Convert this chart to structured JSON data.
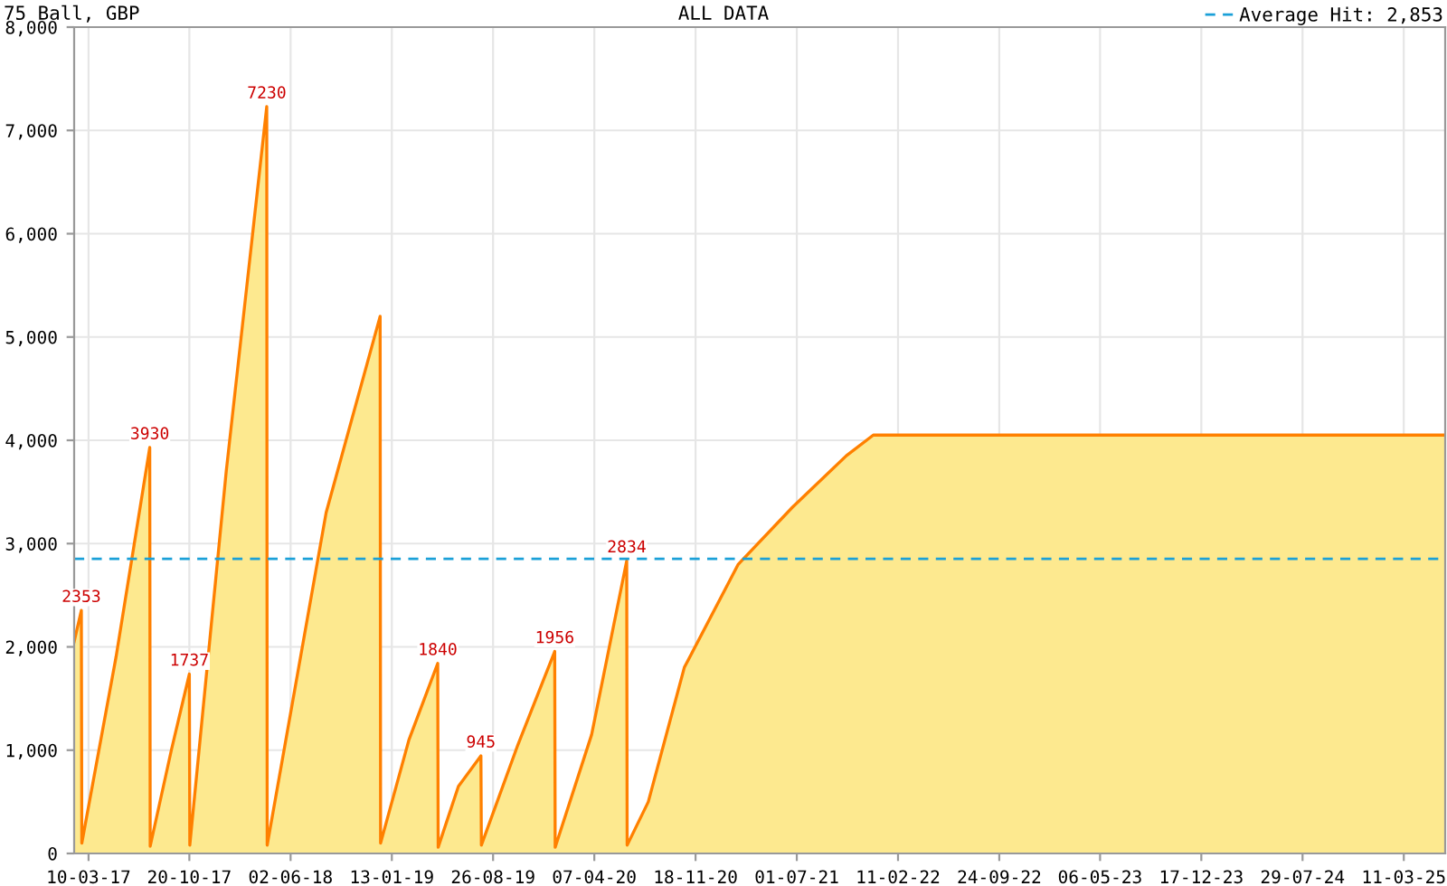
{
  "chart_data": {
    "type": "area",
    "title": "75 Ball, GBP",
    "subtitle": "ALL DATA",
    "series": [
      {
        "color": "#ff8000",
        "x": [
          "2017-02-06",
          "2017-02-22",
          "2017-02-23",
          "2017-05-10",
          "2017-07-24",
          "2017-07-25",
          "2017-09-10",
          "2017-10-20",
          "2017-10-21",
          "2018-01-10",
          "2018-04-10",
          "2018-04-11",
          "2018-08-20",
          "2018-12-18",
          "2018-12-19",
          "2019-02-20",
          "2019-04-25",
          "2019-04-26",
          "2019-06-10",
          "2019-07-30",
          "2019-07-31",
          "2019-10-20",
          "2020-01-10",
          "2020-01-11",
          "2020-04-01",
          "2020-06-18",
          "2020-06-19",
          "2020-08-05",
          "2020-10-24",
          "2021-02-21",
          "2021-06-21",
          "2021-10-19",
          "2021-12-18",
          "2025-06-11"
        ],
        "values": [
          2050,
          2353,
          100,
          1900,
          3930,
          70,
          1000,
          1737,
          80,
          3700,
          7230,
          80,
          3300,
          5200,
          100,
          1100,
          1840,
          60,
          650,
          945,
          80,
          1050,
          1956,
          60,
          1150,
          2834,
          80,
          500,
          1800,
          2800,
          3350,
          3850,
          4050,
          4050
        ]
      }
    ],
    "ylim": [
      0,
      8000
    ],
    "yticks": [
      0,
      {
        "value": 1000,
        "label": "1,000"
      },
      {
        "value": 2000,
        "label": "2,000"
      },
      {
        "value": 3000,
        "label": "3,000"
      },
      {
        "value": 4000,
        "label": "4,000"
      },
      {
        "value": 5000,
        "label": "5,000"
      },
      {
        "value": 6000,
        "label": "6,000"
      },
      {
        "value": 7000,
        "label": "7,000"
      },
      {
        "value": 8000,
        "label": "8,000"
      }
    ],
    "xlim": [
      "2017-02-06",
      "2025-06-11"
    ],
    "xticks": [
      {
        "value": "2017-03-10",
        "label": "10-03-17"
      },
      {
        "value": "2017-10-20",
        "label": "20-10-17"
      },
      {
        "value": "2018-06-02",
        "label": "02-06-18"
      },
      {
        "value": "2019-01-13",
        "label": "13-01-19"
      },
      {
        "value": "2019-08-26",
        "label": "26-08-19"
      },
      {
        "value": "2020-04-07",
        "label": "07-04-20"
      },
      {
        "value": "2020-11-18",
        "label": "18-11-20"
      },
      {
        "value": "2021-07-01",
        "label": "01-07-21"
      },
      {
        "value": "2022-02-11",
        "label": "11-02-22"
      },
      {
        "value": "2022-09-24",
        "label": "24-09-22"
      },
      {
        "value": "2023-05-06",
        "label": "06-05-23"
      },
      {
        "value": "2023-12-17",
        "label": "17-12-23"
      },
      {
        "value": "2024-07-29",
        "label": "29-07-24"
      },
      {
        "value": "2025-03-11",
        "label": "11-03-25"
      }
    ],
    "ref_lines": [
      {
        "axis": "y",
        "value": 2853,
        "label": "Average Hit: 2,853",
        "color": "#1aa0d8",
        "line_style": "dashed"
      }
    ],
    "annotations": [
      {
        "text": "2353",
        "x": "2017-02-22",
        "y": 2353
      },
      {
        "text": "3930",
        "x": "2017-07-24",
        "y": 3930
      },
      {
        "text": "1737",
        "x": "2017-10-20",
        "y": 1737
      },
      {
        "text": "7230",
        "x": "2018-04-10",
        "y": 7230
      },
      {
        "text": "1840",
        "x": "2019-04-25",
        "y": 1840
      },
      {
        "text": "945",
        "x": "2019-07-30",
        "y": 945
      },
      {
        "text": "1956",
        "x": "2020-01-10",
        "y": 1956
      },
      {
        "text": "2834",
        "x": "2020-06-18",
        "y": 2834
      }
    ],
    "grid": true,
    "legend": "top right"
  }
}
